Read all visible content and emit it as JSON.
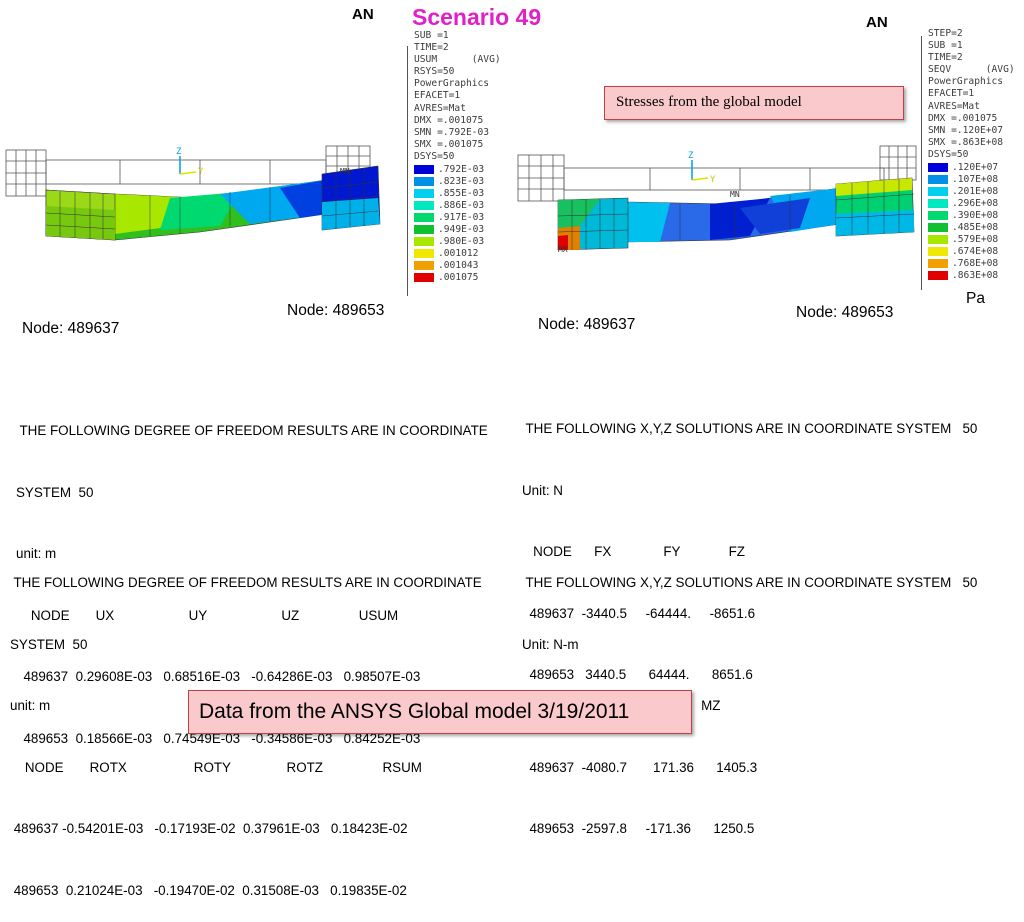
{
  "title": "Scenario 49",
  "logo_text": "AN",
  "left_plot": {
    "info_lines": [
      "SUB =1",
      "TIME=2",
      "USUM      (AVG)",
      "RSYS=50",
      "PowerGraphics",
      "EFACET=1",
      "AVRES=Mat",
      "DMX =.001075",
      "SMN =.792E-03",
      "SMX =.001075",
      "DSYS=50"
    ],
    "legend": [
      {
        "label": ".792E-03",
        "color": "#0000d8"
      },
      {
        "label": ".823E-03",
        "color": "#0090e8"
      },
      {
        "label": ".855E-03",
        "color": "#00d0f0"
      },
      {
        "label": ".886E-03",
        "color": "#00e8c0"
      },
      {
        "label": ".917E-03",
        "color": "#00d870"
      },
      {
        "label": ".949E-03",
        "color": "#10c030"
      },
      {
        "label": ".980E-03",
        "color": "#a8e800"
      },
      {
        "label": ".001012",
        "color": "#f0e800"
      },
      {
        "label": ".001043",
        "color": "#f0a000"
      },
      {
        "label": ".001075",
        "color": "#e00000"
      }
    ],
    "mn_label": "MN",
    "axis_z": "Z",
    "axis_y": "Y"
  },
  "right_plot": {
    "info_lines": [
      "STEP=2",
      "SUB =1",
      "TIME=2",
      "SEQV      (AVG)",
      "PowerGraphics",
      "EFACET=1",
      "AVRES=Mat",
      "DMX =.001075",
      "SMN =.120E+07",
      "SMX =.863E+08",
      "DSYS=50"
    ],
    "legend": [
      {
        "label": ".120E+07",
        "color": "#0000d8"
      },
      {
        "label": ".107E+08",
        "color": "#0090e8"
      },
      {
        "label": ".201E+08",
        "color": "#00d0f0"
      },
      {
        "label": ".296E+08",
        "color": "#00e8c0"
      },
      {
        "label": ".390E+08",
        "color": "#00d870"
      },
      {
        "label": ".485E+08",
        "color": "#10c030"
      },
      {
        "label": ".579E+08",
        "color": "#a8e800"
      },
      {
        "label": ".674E+08",
        "color": "#f0e800"
      },
      {
        "label": ".768E+08",
        "color": "#f0a000"
      },
      {
        "label": ".863E+08",
        "color": "#e00000"
      }
    ],
    "mn_label": "MN",
    "mx_label": "MX",
    "axis_z": "Z",
    "axis_y": "Y",
    "unit": "Pa"
  },
  "stress_note": "Stresses from the global model",
  "node_labels": {
    "left_right": "Node: 489653",
    "left_left": "Node: 489637",
    "right_left": "Node: 489637",
    "right_right": "Node: 489653"
  },
  "dof_translation": {
    "line1": " THE FOLLOWING DEGREE OF FREEDOM RESULTS ARE IN COORDINATE",
    "line2": "SYSTEM  50",
    "unit": "unit: m",
    "header": "    NODE       UX                    UY                    UZ                USUM",
    "row1": "  489637  0.29608E-03   0.68516E-03   -0.64286E-03   0.98507E-03",
    "row2": "  489653  0.18566E-03   0.74549E-03   -0.34586E-03   0.84252E-03"
  },
  "dof_rotation": {
    "line1": " THE FOLLOWING DEGREE OF FREEDOM RESULTS ARE IN COORDINATE",
    "line2": "SYSTEM  50",
    "unit": "unit: m",
    "header": "    NODE       ROTX                  ROTY               ROTZ                RSUM",
    "row1": " 489637 -0.54201E-03   -0.17193E-02  0.37961E-03   0.18423E-02",
    "row2": " 489653  0.21024E-03   -0.19470E-02  0.31508E-03   0.19835E-02"
  },
  "force_solution": {
    "line1": " THE FOLLOWING X,Y,Z SOLUTIONS ARE IN COORDINATE SYSTEM   50",
    "unit": "Unit: N",
    "header": "   NODE      FX              FY             FZ",
    "row1": "  489637  -3440.5     -64444.     -8651.6",
    "row2": "  489653   3440.5      64444.      8651.6"
  },
  "moment_solution": {
    "line1": " THE FOLLOWING X,Y,Z SOLUTIONS ARE IN COORDINATE SYSTEM   50",
    "unit": "Unit: N-m",
    "header": "   NODE      MX         MY         MZ",
    "row1": "  489637  -4080.7       171.36      1405.3",
    "row2": "  489653  -2597.8     -171.36      1250.5"
  },
  "footer_note": "Data from the ANSYS Global model 3/19/2011"
}
